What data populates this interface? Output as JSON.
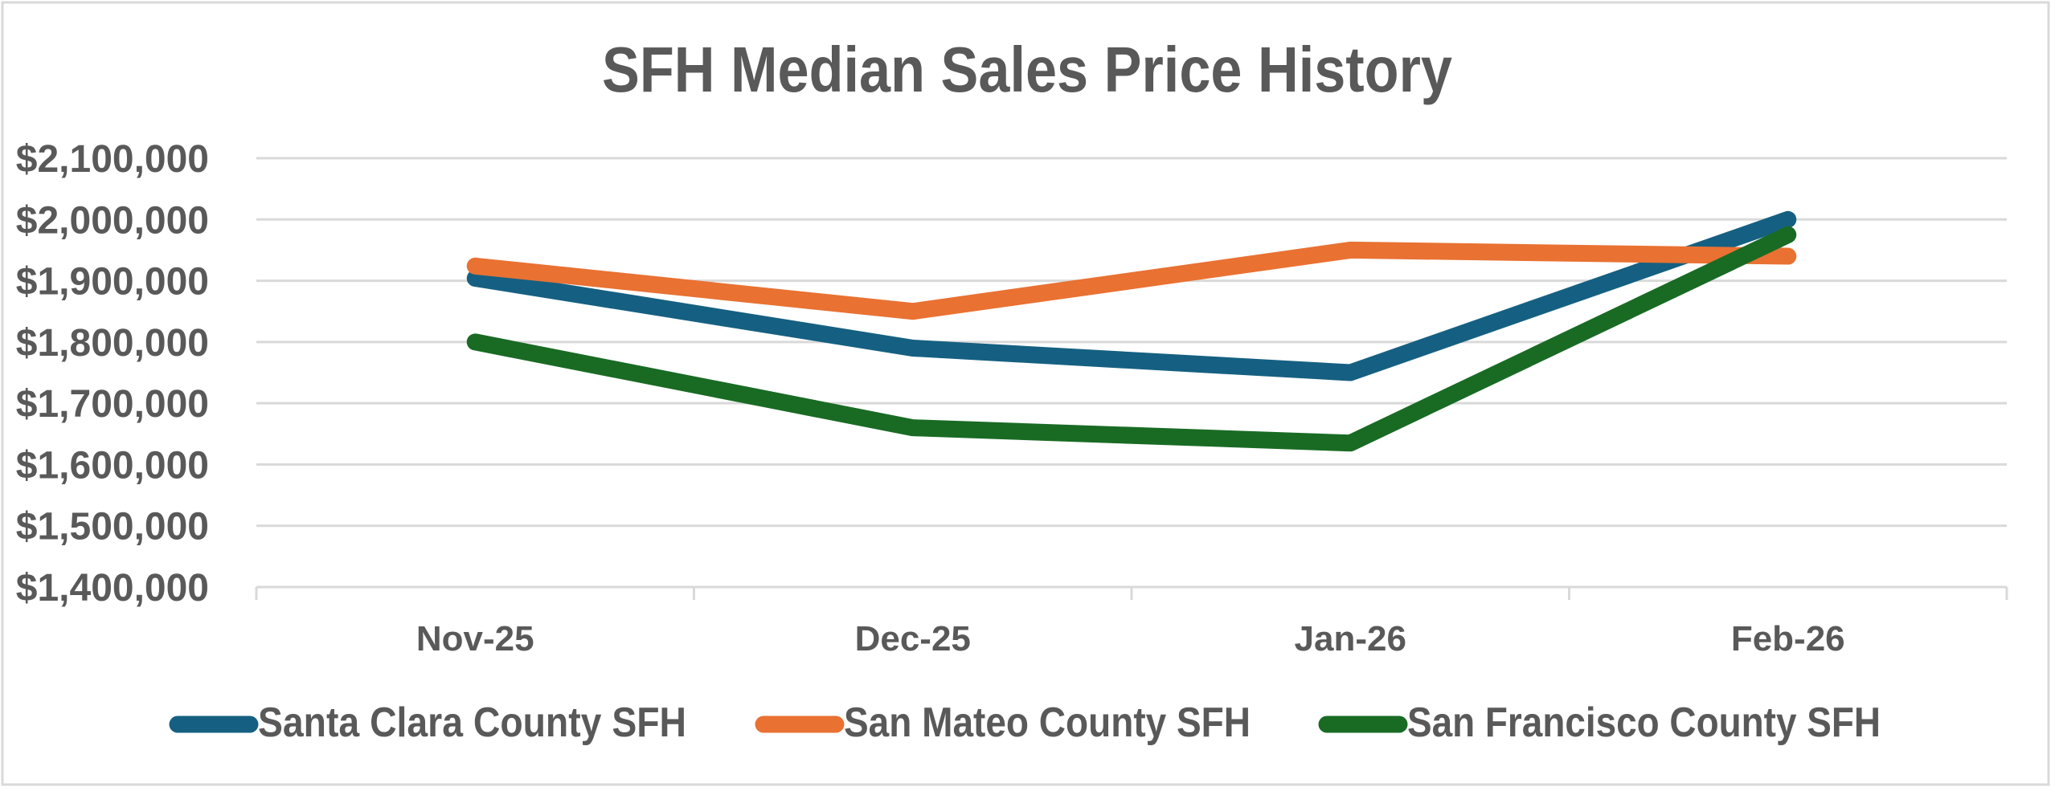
{
  "chart_data": {
    "type": "line",
    "title": "SFH Median Sales Price History",
    "xlabel": "",
    "ylabel": "",
    "categories": [
      "Nov-25",
      "Dec-25",
      "Jan-26",
      "Feb-26"
    ],
    "ylim": [
      1400000,
      2100000
    ],
    "yticks": [
      2100000,
      2000000,
      1900000,
      1800000,
      1700000,
      1600000,
      1500000,
      1400000
    ],
    "ytick_labels": [
      "$2,100,000",
      "$2,000,000",
      "$1,900,000",
      "$1,800,000",
      "$1,700,000",
      "$1,600,000",
      "$1,500,000",
      "$1,400,000"
    ],
    "grid": true,
    "legend_position": "bottom",
    "series": [
      {
        "name": "Santa Clara County SFH",
        "color": "#156082",
        "values": [
          1904000,
          1790000,
          1750000,
          2000000
        ]
      },
      {
        "name": "San Mateo County SFH",
        "color": "#E97132",
        "values": [
          1924000,
          1850000,
          1950000,
          1940000
        ]
      },
      {
        "name": "San Francisco County SFH",
        "color": "#196B24",
        "values": [
          1800000,
          1660000,
          1635000,
          1975000
        ]
      }
    ]
  }
}
